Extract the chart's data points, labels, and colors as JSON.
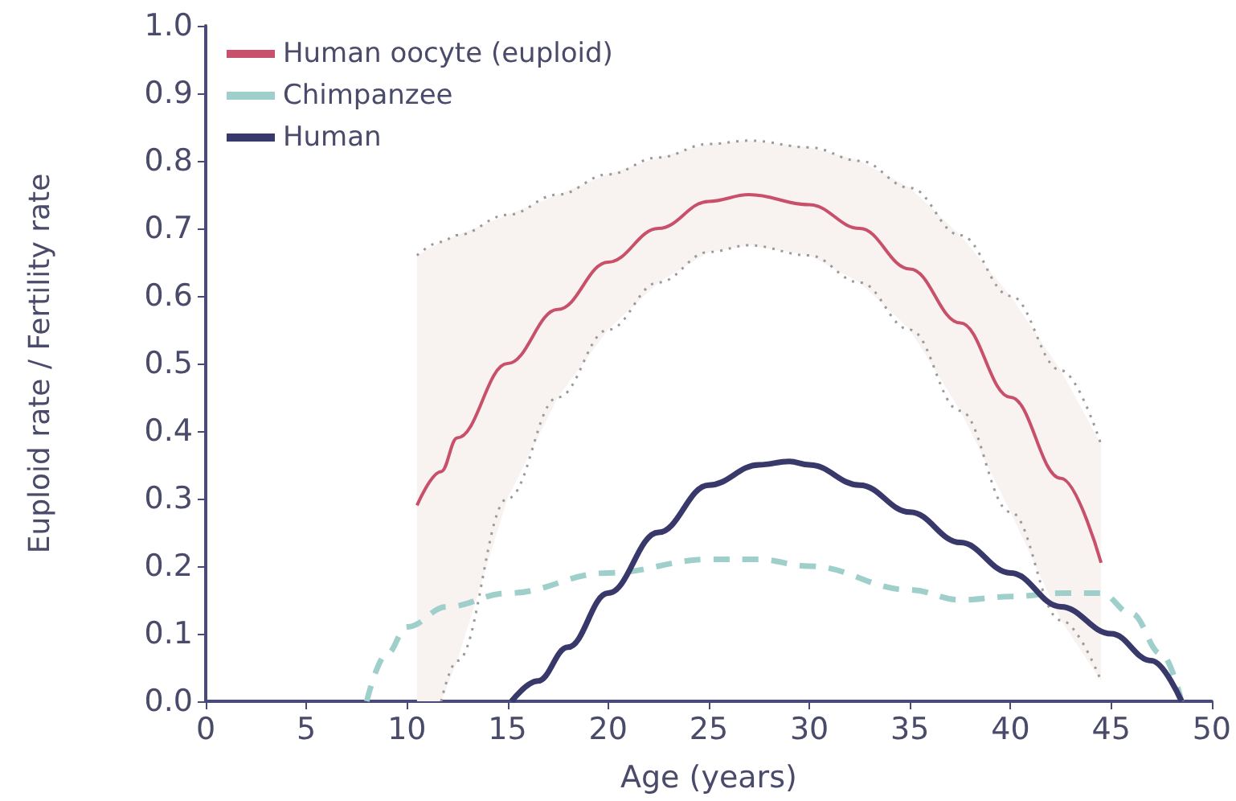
{
  "chart_data": {
    "type": "line",
    "xlabel": "Age (years)",
    "ylabel": "Euploid rate / Fertility rate",
    "xlim": [
      0,
      50
    ],
    "xticks": [
      0,
      5,
      10,
      15,
      20,
      25,
      30,
      35,
      40,
      45,
      50
    ],
    "ylim": [
      0,
      1
    ],
    "yticks": [
      {
        "value": 0,
        "label": "0.0"
      },
      0.1,
      0.2,
      0.3,
      0.4,
      0.5,
      0.6,
      0.7,
      0.8,
      0.9,
      {
        "value": 1,
        "label": "1.0"
      }
    ],
    "grid": false,
    "legend": "top left",
    "marker": "none",
    "series": [
      {
        "name": "Human oocyte (euploid)",
        "color": "#c8506a",
        "line_style": "solid",
        "x": [
          10.5,
          11.7,
          12.5,
          15,
          17.5,
          20,
          22.5,
          25,
          27,
          30,
          32.5,
          35,
          37.5,
          40,
          42.5,
          44.5
        ],
        "values": [
          0.29,
          0.34,
          0.39,
          0.5,
          0.58,
          0.65,
          0.7,
          0.74,
          0.75,
          0.735,
          0.7,
          0.64,
          0.56,
          0.45,
          0.33,
          0.205
        ],
        "upper": [
          0.66,
          0.68,
          0.69,
          0.72,
          0.75,
          0.78,
          0.805,
          0.825,
          0.83,
          0.82,
          0.8,
          0.76,
          0.69,
          0.6,
          0.49,
          0.38
        ],
        "lower": [
          0,
          0,
          0.06,
          0.3,
          0.45,
          0.55,
          0.62,
          0.665,
          0.675,
          0.66,
          0.62,
          0.55,
          0.43,
          0.28,
          0.12,
          0.03
        ]
      },
      {
        "color": "#9a9a9a",
        "line_style": "dotted",
        "x": [
          10.5,
          11.7,
          12.5,
          15,
          17.5,
          20,
          22.5,
          25,
          27,
          30,
          32.5,
          35,
          37.5,
          40,
          42.5,
          44.5
        ],
        "values": [
          0.66,
          0.68,
          0.69,
          0.72,
          0.75,
          0.78,
          0.805,
          0.825,
          0.83,
          0.82,
          0.8,
          0.76,
          0.69,
          0.6,
          0.49,
          0.38
        ]
      },
      {
        "color": "#9a9a9a",
        "line_style": "dotted",
        "x": [
          11.7,
          12.5,
          15,
          17.5,
          20,
          22.5,
          25,
          27,
          30,
          32.5,
          35,
          37.5,
          40,
          42.5,
          44.5
        ],
        "values": [
          0,
          0.06,
          0.3,
          0.45,
          0.55,
          0.62,
          0.665,
          0.675,
          0.66,
          0.62,
          0.55,
          0.43,
          0.28,
          0.12,
          0.03
        ]
      },
      {
        "name": "Chimpanzee",
        "color": "#9fcfca",
        "line_style": "dashed",
        "x": [
          8,
          9,
          10,
          12,
          15,
          20,
          25,
          27.5,
          30,
          35,
          37.5,
          40,
          42.5,
          44.5,
          46,
          47.5,
          48.5
        ],
        "values": [
          0,
          0.07,
          0.11,
          0.14,
          0.16,
          0.19,
          0.21,
          0.21,
          0.2,
          0.165,
          0.15,
          0.155,
          0.16,
          0.16,
          0.13,
          0.07,
          0
        ]
      },
      {
        "name": "Human",
        "color": "#38386b",
        "line_style": "solid",
        "x": [
          15.2,
          16.5,
          18,
          20,
          22.5,
          25,
          27.5,
          29,
          30,
          32.5,
          35,
          37.5,
          40,
          42.5,
          45,
          47,
          48.5
        ],
        "values": [
          0,
          0.03,
          0.08,
          0.16,
          0.25,
          0.32,
          0.35,
          0.355,
          0.35,
          0.32,
          0.28,
          0.235,
          0.19,
          0.14,
          0.1,
          0.06,
          0
        ]
      }
    ]
  }
}
